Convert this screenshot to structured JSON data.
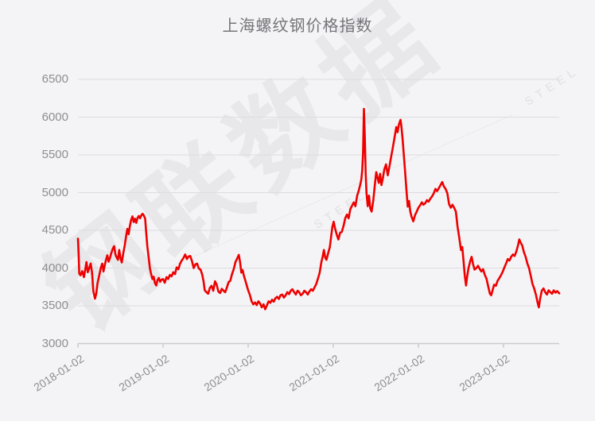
{
  "title": "上海螺纹钢价格指数",
  "watermark": {
    "text": "钢联数据",
    "subtext": "STEEL"
  },
  "colors": {
    "line": "#ee0000",
    "grid": "#dddde1",
    "axis": "#c9c9cf",
    "label": "#8e8e93",
    "title": "#74747a",
    "background": "#f4f4f6"
  },
  "chart_data": {
    "type": "line",
    "title": "上海螺纹钢价格指数",
    "series_name": "上海螺纹钢价格指数",
    "xlabel": "",
    "ylabel": "",
    "ylim": [
      3000,
      6500
    ],
    "yticks": [
      3000,
      3500,
      4000,
      4500,
      5000,
      5500,
      6000,
      6500
    ],
    "xtick_labels": [
      "2018-01-02",
      "2019-01-02",
      "2020-01-02",
      "2021-01-02",
      "2022-01-02",
      "2023-01-02"
    ],
    "xtick_positions": [
      0,
      1,
      2,
      3,
      4,
      5
    ],
    "x_unit": "years since 2018-01-02",
    "x_range": [
      0,
      5.655
    ],
    "grid": true,
    "legend_position": "none",
    "points": [
      [
        0,
        4390
      ],
      [
        0.008,
        4180
      ],
      [
        0.015,
        3930
      ],
      [
        0.03,
        3905
      ],
      [
        0.05,
        3960
      ],
      [
        0.07,
        3880
      ],
      [
        0.09,
        4010
      ],
      [
        0.1,
        4080
      ],
      [
        0.115,
        3945
      ],
      [
        0.13,
        3990
      ],
      [
        0.15,
        4060
      ],
      [
        0.165,
        3940
      ],
      [
        0.18,
        3700
      ],
      [
        0.2,
        3595
      ],
      [
        0.215,
        3660
      ],
      [
        0.23,
        3800
      ],
      [
        0.25,
        3905
      ],
      [
        0.27,
        4010
      ],
      [
        0.285,
        4060
      ],
      [
        0.3,
        3955
      ],
      [
        0.315,
        4040
      ],
      [
        0.33,
        4110
      ],
      [
        0.345,
        4170
      ],
      [
        0.36,
        4085
      ],
      [
        0.375,
        4130
      ],
      [
        0.39,
        4190
      ],
      [
        0.41,
        4260
      ],
      [
        0.425,
        4290
      ],
      [
        0.44,
        4180
      ],
      [
        0.455,
        4140
      ],
      [
        0.47,
        4110
      ],
      [
        0.485,
        4240
      ],
      [
        0.5,
        4130
      ],
      [
        0.515,
        4075
      ],
      [
        0.53,
        4180
      ],
      [
        0.55,
        4300
      ],
      [
        0.565,
        4420
      ],
      [
        0.58,
        4520
      ],
      [
        0.595,
        4450
      ],
      [
        0.61,
        4560
      ],
      [
        0.625,
        4640
      ],
      [
        0.64,
        4685
      ],
      [
        0.655,
        4610
      ],
      [
        0.67,
        4655
      ],
      [
        0.685,
        4600
      ],
      [
        0.7,
        4665
      ],
      [
        0.715,
        4690
      ],
      [
        0.73,
        4660
      ],
      [
        0.745,
        4700
      ],
      [
        0.76,
        4720
      ],
      [
        0.775,
        4695
      ],
      [
        0.79,
        4655
      ],
      [
        0.8,
        4500
      ],
      [
        0.815,
        4290
      ],
      [
        0.83,
        4150
      ],
      [
        0.845,
        4000
      ],
      [
        0.86,
        3920
      ],
      [
        0.875,
        3855
      ],
      [
        0.89,
        3885
      ],
      [
        0.905,
        3800
      ],
      [
        0.92,
        3770
      ],
      [
        0.935,
        3840
      ],
      [
        0.95,
        3870
      ],
      [
        0.965,
        3820
      ],
      [
        0.98,
        3845
      ],
      [
        1,
        3855
      ],
      [
        1.02,
        3805
      ],
      [
        1.04,
        3880
      ],
      [
        1.06,
        3855
      ],
      [
        1.08,
        3910
      ],
      [
        1.1,
        3890
      ],
      [
        1.12,
        3945
      ],
      [
        1.14,
        3920
      ],
      [
        1.16,
        4010
      ],
      [
        1.18,
        3985
      ],
      [
        1.2,
        4060
      ],
      [
        1.22,
        4100
      ],
      [
        1.24,
        4135
      ],
      [
        1.26,
        4180
      ],
      [
        1.28,
        4120
      ],
      [
        1.3,
        4155
      ],
      [
        1.32,
        4160
      ],
      [
        1.34,
        4090
      ],
      [
        1.36,
        4000
      ],
      [
        1.38,
        4050
      ],
      [
        1.4,
        4060
      ],
      [
        1.42,
        3995
      ],
      [
        1.44,
        3980
      ],
      [
        1.46,
        3915
      ],
      [
        1.475,
        3830
      ],
      [
        1.49,
        3705
      ],
      [
        1.51,
        3680
      ],
      [
        1.53,
        3660
      ],
      [
        1.55,
        3740
      ],
      [
        1.57,
        3765
      ],
      [
        1.59,
        3700
      ],
      [
        1.61,
        3825
      ],
      [
        1.63,
        3780
      ],
      [
        1.65,
        3690
      ],
      [
        1.67,
        3670
      ],
      [
        1.69,
        3725
      ],
      [
        1.71,
        3700
      ],
      [
        1.73,
        3680
      ],
      [
        1.75,
        3745
      ],
      [
        1.77,
        3815
      ],
      [
        1.79,
        3830
      ],
      [
        1.81,
        3920
      ],
      [
        1.83,
        3985
      ],
      [
        1.85,
        4080
      ],
      [
        1.87,
        4125
      ],
      [
        1.89,
        4175
      ],
      [
        1.905,
        4080
      ],
      [
        1.92,
        3940
      ],
      [
        1.935,
        3975
      ],
      [
        1.95,
        3900
      ],
      [
        1.965,
        3840
      ],
      [
        1.98,
        3780
      ],
      [
        2,
        3705
      ],
      [
        2.02,
        3645
      ],
      [
        2.04,
        3560
      ],
      [
        2.06,
        3520
      ],
      [
        2.08,
        3545
      ],
      [
        2.1,
        3510
      ],
      [
        2.12,
        3560
      ],
      [
        2.14,
        3530
      ],
      [
        2.16,
        3480
      ],
      [
        2.18,
        3520
      ],
      [
        2.2,
        3455
      ],
      [
        2.22,
        3505
      ],
      [
        2.24,
        3560
      ],
      [
        2.26,
        3540
      ],
      [
        2.28,
        3580
      ],
      [
        2.3,
        3555
      ],
      [
        2.32,
        3600
      ],
      [
        2.34,
        3620
      ],
      [
        2.36,
        3590
      ],
      [
        2.38,
        3640
      ],
      [
        2.4,
        3650
      ],
      [
        2.42,
        3610
      ],
      [
        2.44,
        3640
      ],
      [
        2.46,
        3680
      ],
      [
        2.48,
        3655
      ],
      [
        2.5,
        3700
      ],
      [
        2.52,
        3720
      ],
      [
        2.54,
        3680
      ],
      [
        2.56,
        3650
      ],
      [
        2.58,
        3700
      ],
      [
        2.6,
        3680
      ],
      [
        2.62,
        3640
      ],
      [
        2.64,
        3660
      ],
      [
        2.66,
        3700
      ],
      [
        2.68,
        3680
      ],
      [
        2.7,
        3650
      ],
      [
        2.72,
        3690
      ],
      [
        2.74,
        3720
      ],
      [
        2.76,
        3700
      ],
      [
        2.78,
        3745
      ],
      [
        2.8,
        3790
      ],
      [
        2.82,
        3860
      ],
      [
        2.84,
        3940
      ],
      [
        2.86,
        4080
      ],
      [
        2.875,
        4150
      ],
      [
        2.89,
        4240
      ],
      [
        2.905,
        4140
      ],
      [
        2.92,
        4110
      ],
      [
        2.94,
        4200
      ],
      [
        2.96,
        4280
      ],
      [
        2.975,
        4420
      ],
      [
        2.99,
        4550
      ],
      [
        3.005,
        4615
      ],
      [
        3.02,
        4530
      ],
      [
        3.04,
        4445
      ],
      [
        3.06,
        4380
      ],
      [
        3.08,
        4470
      ],
      [
        3.1,
        4480
      ],
      [
        3.12,
        4555
      ],
      [
        3.14,
        4660
      ],
      [
        3.16,
        4710
      ],
      [
        3.18,
        4660
      ],
      [
        3.2,
        4780
      ],
      [
        3.22,
        4825
      ],
      [
        3.24,
        4870
      ],
      [
        3.26,
        4820
      ],
      [
        3.28,
        4960
      ],
      [
        3.3,
        5030
      ],
      [
        3.32,
        5120
      ],
      [
        3.33,
        5180
      ],
      [
        3.34,
        5300
      ],
      [
        3.35,
        5520
      ],
      [
        3.36,
        6110
      ],
      [
        3.37,
        5750
      ],
      [
        3.38,
        5260
      ],
      [
        3.39,
        5000
      ],
      [
        3.405,
        4820
      ],
      [
        3.42,
        4960
      ],
      [
        3.435,
        4790
      ],
      [
        3.45,
        4750
      ],
      [
        3.47,
        4900
      ],
      [
        3.49,
        5120
      ],
      [
        3.505,
        5270
      ],
      [
        3.52,
        5200
      ],
      [
        3.535,
        5130
      ],
      [
        3.55,
        5250
      ],
      [
        3.565,
        5100
      ],
      [
        3.58,
        5180
      ],
      [
        3.6,
        5310
      ],
      [
        3.62,
        5375
      ],
      [
        3.64,
        5230
      ],
      [
        3.66,
        5350
      ],
      [
        3.68,
        5480
      ],
      [
        3.7,
        5600
      ],
      [
        3.72,
        5730
      ],
      [
        3.74,
        5870
      ],
      [
        3.755,
        5800
      ],
      [
        3.77,
        5900
      ],
      [
        3.79,
        5965
      ],
      [
        3.8,
        5880
      ],
      [
        3.815,
        5700
      ],
      [
        3.83,
        5480
      ],
      [
        3.845,
        5260
      ],
      [
        3.86,
        5030
      ],
      [
        3.875,
        4815
      ],
      [
        3.89,
        4890
      ],
      [
        3.905,
        4750
      ],
      [
        3.92,
        4680
      ],
      [
        3.94,
        4620
      ],
      [
        3.96,
        4700
      ],
      [
        3.98,
        4750
      ],
      [
        4,
        4800
      ],
      [
        4.02,
        4830
      ],
      [
        4.04,
        4870
      ],
      [
        4.06,
        4840
      ],
      [
        4.08,
        4860
      ],
      [
        4.1,
        4900
      ],
      [
        4.12,
        4880
      ],
      [
        4.14,
        4920
      ],
      [
        4.16,
        4950
      ],
      [
        4.18,
        4990
      ],
      [
        4.2,
        5050
      ],
      [
        4.22,
        5020
      ],
      [
        4.24,
        5060
      ],
      [
        4.26,
        5100
      ],
      [
        4.28,
        5140
      ],
      [
        4.3,
        5080
      ],
      [
        4.32,
        5050
      ],
      [
        4.34,
        4990
      ],
      [
        4.36,
        4850
      ],
      [
        4.38,
        4800
      ],
      [
        4.4,
        4840
      ],
      [
        4.42,
        4800
      ],
      [
        4.44,
        4750
      ],
      [
        4.46,
        4550
      ],
      [
        4.48,
        4400
      ],
      [
        4.5,
        4240
      ],
      [
        4.515,
        4280
      ],
      [
        4.53,
        4100
      ],
      [
        4.545,
        3900
      ],
      [
        4.56,
        3770
      ],
      [
        4.575,
        3905
      ],
      [
        4.59,
        4005
      ],
      [
        4.61,
        4100
      ],
      [
        4.625,
        4150
      ],
      [
        4.64,
        4060
      ],
      [
        4.66,
        3980
      ],
      [
        4.68,
        4000
      ],
      [
        4.7,
        4030
      ],
      [
        4.72,
        3990
      ],
      [
        4.74,
        3955
      ],
      [
        4.76,
        3985
      ],
      [
        4.78,
        3910
      ],
      [
        4.8,
        3860
      ],
      [
        4.82,
        3760
      ],
      [
        4.84,
        3660
      ],
      [
        4.855,
        3640
      ],
      [
        4.87,
        3700
      ],
      [
        4.89,
        3780
      ],
      [
        4.91,
        3765
      ],
      [
        4.93,
        3830
      ],
      [
        4.95,
        3865
      ],
      [
        4.97,
        3905
      ],
      [
        4.99,
        3950
      ],
      [
        5.01,
        4010
      ],
      [
        5.03,
        4060
      ],
      [
        5.05,
        4120
      ],
      [
        5.07,
        4100
      ],
      [
        5.09,
        4150
      ],
      [
        5.11,
        4180
      ],
      [
        5.13,
        4160
      ],
      [
        5.15,
        4220
      ],
      [
        5.17,
        4300
      ],
      [
        5.185,
        4380
      ],
      [
        5.2,
        4340
      ],
      [
        5.22,
        4300
      ],
      [
        5.24,
        4210
      ],
      [
        5.26,
        4150
      ],
      [
        5.28,
        4060
      ],
      [
        5.3,
        4000
      ],
      [
        5.32,
        3900
      ],
      [
        5.34,
        3790
      ],
      [
        5.36,
        3730
      ],
      [
        5.38,
        3650
      ],
      [
        5.4,
        3545
      ],
      [
        5.415,
        3480
      ],
      [
        5.43,
        3590
      ],
      [
        5.45,
        3700
      ],
      [
        5.47,
        3730
      ],
      [
        5.49,
        3680
      ],
      [
        5.51,
        3650
      ],
      [
        5.53,
        3705
      ],
      [
        5.55,
        3680
      ],
      [
        5.57,
        3660
      ],
      [
        5.59,
        3705
      ],
      [
        5.61,
        3675
      ],
      [
        5.63,
        3695
      ],
      [
        5.655,
        3665
      ]
    ]
  }
}
